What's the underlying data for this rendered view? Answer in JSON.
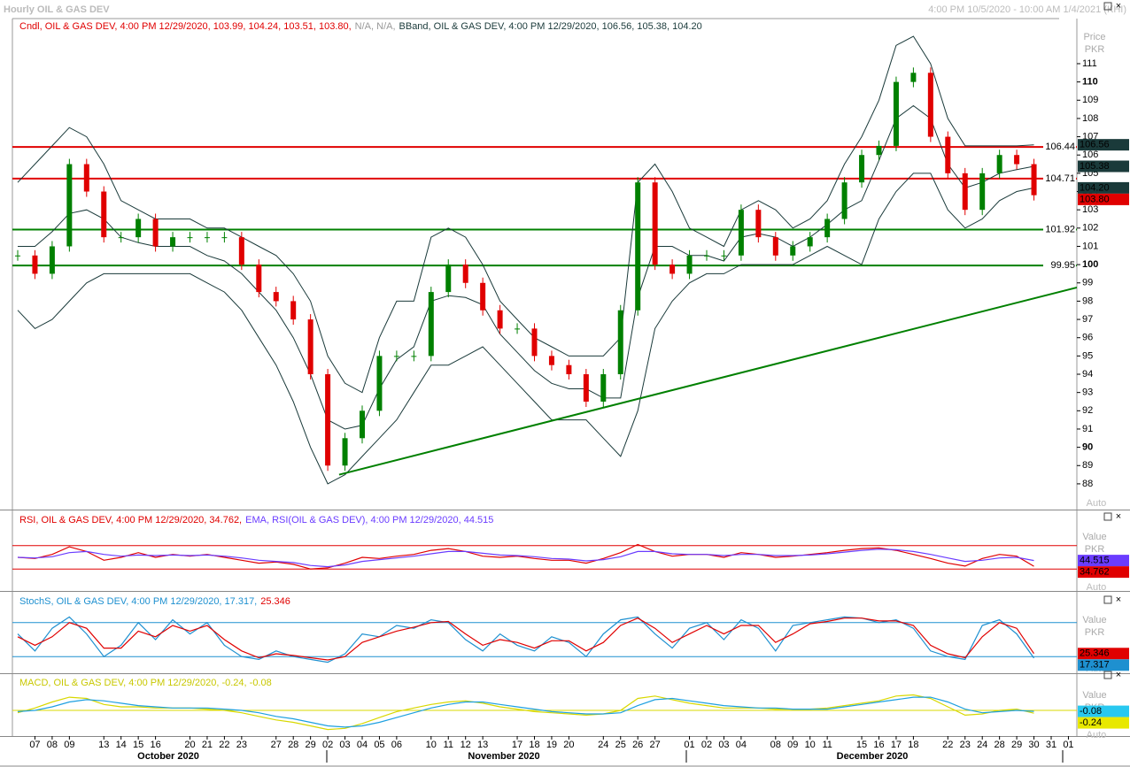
{
  "title": "Hourly OIL & GAS DEV",
  "range": "4:00 PM 10/5/2020 - 10:00 AM 1/4/2021 (KHI)",
  "months": [
    "October 2020",
    "November 2020",
    "December 2020"
  ],
  "auto": "Auto",
  "chart_data": [
    {
      "type": "candlestick",
      "legend": [
        {
          "text": "Cndl, OIL & GAS DEV, 4:00 PM 12/29/2020, 103.99, 104.24, 103.51, 103.80,",
          "color": "#e00000"
        },
        {
          "text": "N/A, N/A,",
          "color": "#999999"
        },
        {
          "text": "BBand, OIL & GAS DEV, 4:00 PM 12/29/2020, 106.56, 105.38, 104.20",
          "color": "#1a3a3a"
        }
      ],
      "axis_title": [
        "Price",
        "PKR"
      ],
      "categories": [
        null,
        "07",
        "08",
        "09",
        null,
        "13",
        "14",
        "15",
        "16",
        null,
        "20",
        "21",
        "22",
        "23",
        null,
        "27",
        "28",
        "29",
        "02",
        "03",
        "04",
        "05",
        "06",
        null,
        "10",
        "11",
        "12",
        "13",
        null,
        "17",
        "18",
        "19",
        "20",
        null,
        "24",
        "25",
        "26",
        "27",
        null,
        "01",
        "02",
        "03",
        "04",
        null,
        "08",
        "09",
        "10",
        "11",
        null,
        "15",
        "16",
        "17",
        "18",
        null,
        "22",
        "23",
        "24",
        "28",
        "29",
        "30",
        "31",
        "01"
      ],
      "values": [
        100.5,
        99.5,
        101,
        105.5,
        104,
        101.5,
        101.5,
        102.5,
        101,
        101.5,
        101.5,
        101.5,
        101.5,
        100,
        98.5,
        98,
        97,
        94,
        89,
        90.5,
        92,
        95,
        95,
        95,
        98.5,
        100,
        99,
        97.5,
        96.5,
        96.5,
        95,
        94.5,
        94,
        92.5,
        94,
        97.5,
        104.5,
        100,
        99.5,
        100.5,
        100.5,
        100.5,
        103,
        101.5,
        100.5,
        101,
        101.5,
        102.5,
        104.5,
        106,
        106.5,
        110,
        110.5,
        107,
        105,
        103,
        105,
        106,
        105.5,
        103.8,
        null,
        null
      ],
      "up_color": "#008000",
      "down_color": "#e00000",
      "series": [
        {
          "color": "#1a3a3a",
          "values": [
            104.5,
            105.5,
            106.5,
            107.5,
            107,
            105.5,
            103.5,
            103,
            102.5,
            102.5,
            102.5,
            102,
            102,
            101.5,
            101,
            100.5,
            99.5,
            98,
            95,
            93.5,
            93,
            96,
            98,
            98,
            101.5,
            102,
            101.5,
            100,
            98,
            97,
            96,
            95.5,
            95,
            95,
            95,
            96,
            104.5,
            105.5,
            104,
            102,
            101.5,
            101,
            103,
            103.5,
            103,
            102,
            102.5,
            103.5,
            105.5,
            107,
            109,
            112,
            112.5,
            111,
            108,
            106.5,
            106.5,
            106.5,
            106.5,
            106.56,
            null,
            null
          ]
        },
        {
          "color": "#1a3a3a",
          "values": [
            101,
            101,
            101.8,
            102.8,
            103,
            102.5,
            101.5,
            101.2,
            101,
            101,
            101,
            100.5,
            100.2,
            99.5,
            98.5,
            97.5,
            96,
            94,
            91.5,
            91,
            91.2,
            93.2,
            94.8,
            95.5,
            98,
            98.3,
            98.2,
            97.8,
            96.2,
            95.2,
            94.2,
            93.5,
            93.2,
            93.2,
            92.7,
            92.7,
            98.2,
            101,
            101,
            100.5,
            100.5,
            100.2,
            101.5,
            101.7,
            101.5,
            101,
            101.5,
            102.2,
            103,
            103.5,
            105.7,
            108,
            108.7,
            108,
            105.5,
            104.2,
            104.5,
            105,
            105.2,
            105.38,
            null,
            null
          ]
        },
        {
          "color": "#1a3a3a",
          "values": [
            97.5,
            96.5,
            97,
            98,
            99,
            99.5,
            99.5,
            99.5,
            99.5,
            99.5,
            99.5,
            99,
            98.5,
            97.5,
            96,
            94.5,
            92.5,
            90,
            88,
            88.5,
            89.5,
            90.5,
            91.5,
            93,
            94.5,
            94.5,
            95,
            95.5,
            94.5,
            93.5,
            92.5,
            91.5,
            91.5,
            91.5,
            90.5,
            89.5,
            92,
            96.5,
            98,
            99,
            99.5,
            99.5,
            100,
            100,
            100,
            100,
            100.5,
            101,
            100.5,
            100,
            102.5,
            104,
            105,
            105,
            103,
            102,
            102.5,
            103.5,
            104,
            104.2,
            null,
            null
          ]
        }
      ],
      "levels": [
        {
          "value": 106.44,
          "color": "#e00000"
        },
        {
          "value": 104.71,
          "color": "#e00000"
        },
        {
          "value": 101.92,
          "color": "#008000"
        },
        {
          "value": 99.95,
          "color": "#008000"
        }
      ],
      "trendline": {
        "x": [
          18.66,
          61.5
        ],
        "values": [
          88.5,
          98.75
        ],
        "color": "#008000"
      },
      "tags": [
        {
          "value": 106.56,
          "color": "#1a3a3a"
        },
        {
          "value": 105.38,
          "color": "#1a3a3a"
        },
        {
          "value": 104.2,
          "label": "104.20",
          "color": "#1a3a3a"
        },
        {
          "value": 103.8,
          "label": "103.80",
          "color": "#e00000"
        }
      ],
      "ylim": [
        86.64,
        113.42
      ],
      "yticks": [
        88,
        89,
        90,
        91,
        92,
        93,
        94,
        95,
        96,
        97,
        98,
        99,
        100,
        101,
        102,
        103,
        104,
        105,
        106,
        107,
        108,
        109,
        110,
        111
      ]
    },
    {
      "type": "line",
      "legend": [
        {
          "text": "RSI, OIL & GAS DEV, 4:00 PM 12/29/2020, 34.762,",
          "color": "#e00000"
        },
        {
          "text": "EMA, RSI(OIL & GAS DEV), 4:00 PM 12/29/2020, 44.515",
          "color": "#6a3cff"
        }
      ],
      "axis_title": [
        "Value",
        "PKR"
      ],
      "series": [
        {
          "color": "#e00000",
          "values": [
            50,
            48,
            55,
            68,
            60,
            45,
            50,
            58,
            50,
            55,
            52,
            55,
            50,
            45,
            40,
            42,
            38,
            30,
            32,
            40,
            50,
            48,
            52,
            55,
            62,
            65,
            60,
            52,
            50,
            52,
            48,
            45,
            45,
            40,
            48,
            58,
            72,
            60,
            52,
            55,
            55,
            50,
            58,
            55,
            50,
            52,
            55,
            58,
            62,
            65,
            66,
            62,
            55,
            48,
            40,
            35,
            48,
            55,
            52,
            34.762,
            null,
            null
          ]
        },
        {
          "color": "#6a3cff",
          "values": [
            50,
            49,
            51,
            58,
            60,
            55,
            52,
            54,
            53,
            54,
            53,
            54,
            52,
            49,
            45,
            43,
            41,
            36,
            34,
            37,
            43,
            46,
            49,
            52,
            56,
            60,
            60,
            57,
            54,
            53,
            51,
            48,
            47,
            44,
            46,
            51,
            60,
            60,
            56,
            55,
            55,
            53,
            55,
            55,
            53,
            53,
            54,
            56,
            59,
            62,
            64,
            63,
            60,
            55,
            49,
            43,
            45,
            49,
            50,
            44.515,
            null,
            null
          ]
        }
      ],
      "levels": [
        {
          "value": 70,
          "color": "#e00000"
        },
        {
          "value": 30,
          "color": "#e00000"
        }
      ],
      "tags": [
        {
          "value": 44.515,
          "color": "#6a3cff"
        },
        {
          "value": 34.762,
          "color": "#e00000"
        }
      ],
      "ylim": [
        0,
        100
      ]
    },
    {
      "type": "line",
      "legend": [
        {
          "text": "StochS, OIL & GAS DEV, 4:00 PM 12/29/2020, 17.317,",
          "color": "#1e90d0"
        },
        {
          "text": "25.346",
          "color": "#e00000"
        }
      ],
      "axis_title": [
        "Value",
        "PKR"
      ],
      "series": [
        {
          "color": "#1e90d0",
          "values": [
            60,
            30,
            70,
            90,
            60,
            20,
            40,
            80,
            50,
            85,
            60,
            80,
            40,
            20,
            15,
            30,
            20,
            15,
            10,
            25,
            60,
            55,
            75,
            70,
            85,
            80,
            50,
            30,
            60,
            40,
            30,
            55,
            45,
            20,
            60,
            85,
            90,
            60,
            35,
            70,
            80,
            50,
            85,
            70,
            30,
            75,
            80,
            85,
            90,
            88,
            80,
            85,
            70,
            30,
            20,
            15,
            75,
            85,
            60,
            17.317,
            null,
            null
          ]
        },
        {
          "color": "#e00000",
          "values": [
            55,
            40,
            55,
            80,
            70,
            35,
            35,
            65,
            55,
            75,
            65,
            75,
            50,
            30,
            18,
            25,
            22,
            18,
            14,
            20,
            45,
            55,
            65,
            72,
            80,
            82,
            60,
            40,
            50,
            45,
            35,
            48,
            48,
            30,
            45,
            75,
            88,
            70,
            45,
            60,
            75,
            60,
            75,
            75,
            45,
            60,
            78,
            82,
            88,
            88,
            83,
            83,
            75,
            40,
            25,
            18,
            55,
            80,
            70,
            25.346,
            null,
            null
          ]
        }
      ],
      "levels": [
        {
          "value": 80,
          "color": "#1e90d0"
        },
        {
          "value": 20,
          "color": "#1e90d0"
        }
      ],
      "tags": [
        {
          "value": 25.346,
          "color": "#e00000"
        },
        {
          "value": 17.317,
          "color": "#1e90d0"
        }
      ],
      "ylim": [
        0,
        100
      ]
    },
    {
      "type": "line",
      "legend": [
        {
          "text": "MACD, OIL & GAS DEV, 4:00 PM 12/29/2020, -0.24, -0.08",
          "color": "#c8c800"
        }
      ],
      "axis_title": [
        "Value",
        "PKR"
      ],
      "series": [
        {
          "color": "#d8d800",
          "values": [
            -0.2,
            0.2,
            0.7,
            1.1,
            1.0,
            0.5,
            0.3,
            0.3,
            0.2,
            0.2,
            0.2,
            0.1,
            0.0,
            -0.2,
            -0.5,
            -0.8,
            -1.0,
            -1.3,
            -1.6,
            -1.5,
            -1.1,
            -0.6,
            -0.1,
            0.2,
            0.5,
            0.7,
            0.8,
            0.6,
            0.3,
            0.1,
            -0.1,
            -0.2,
            -0.3,
            -0.4,
            -0.3,
            0.0,
            1.0,
            1.2,
            0.9,
            0.6,
            0.4,
            0.2,
            0.2,
            0.2,
            0.1,
            0.1,
            0.1,
            0.2,
            0.4,
            0.6,
            0.8,
            1.2,
            1.3,
            1.0,
            0.3,
            -0.4,
            -0.3,
            0.0,
            0.1,
            -0.24,
            null,
            null
          ]
        },
        {
          "color": "#1ea0e0",
          "values": [
            -0.1,
            0,
            0.3,
            0.7,
            0.9,
            0.8,
            0.6,
            0.4,
            0.3,
            0.2,
            0.2,
            0.2,
            0.1,
            0,
            -0.2,
            -0.5,
            -0.7,
            -1.0,
            -1.3,
            -1.4,
            -1.3,
            -1.0,
            -0.6,
            -0.2,
            0.2,
            0.5,
            0.7,
            0.7,
            0.5,
            0.3,
            0.1,
            -0.1,
            -0.2,
            -0.3,
            -0.3,
            -0.2,
            0.4,
            0.9,
            1.0,
            0.8,
            0.6,
            0.4,
            0.3,
            0.2,
            0.2,
            0.1,
            0.1,
            0.1,
            0.3,
            0.5,
            0.7,
            0.9,
            1.1,
            1.1,
            0.7,
            0.1,
            -0.2,
            -0.1,
            0.0,
            -0.08,
            null,
            null
          ]
        }
      ],
      "levels": [
        {
          "value": 0,
          "color": "#d8d800"
        }
      ],
      "tags": [
        {
          "value": -0.08,
          "color": "#28c8f0"
        },
        {
          "value": -0.24,
          "color": "#e8e800"
        }
      ],
      "ylim": [
        -2,
        2
      ]
    }
  ]
}
